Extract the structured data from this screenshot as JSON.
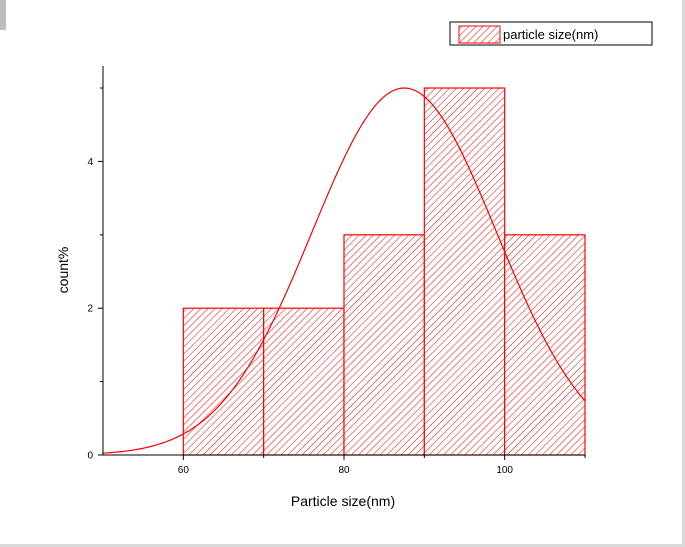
{
  "chart_data": {
    "type": "bar",
    "subtype": "histogram",
    "title": "",
    "xlabel": "Particle size(nm)",
    "ylabel": "count%",
    "xlim": [
      50,
      110
    ],
    "ylim": [
      0,
      5.3
    ],
    "x_ticks": [
      60,
      80,
      100
    ],
    "y_ticks": [
      0,
      2,
      4
    ],
    "grid": false,
    "legend_position": "top-right",
    "bins": [
      {
        "start": 60,
        "end": 70,
        "value": 2
      },
      {
        "start": 70,
        "end": 80,
        "value": 2
      },
      {
        "start": 80,
        "end": 90,
        "value": 3
      },
      {
        "start": 90,
        "end": 100,
        "value": 5
      },
      {
        "start": 100,
        "end": 110,
        "value": 3
      }
    ],
    "series": [
      {
        "name": "particle size(nm)",
        "kind": "histogram",
        "color": "#ff0000",
        "fill": "diagonal-hatch"
      },
      {
        "kind": "normal-fit-curve",
        "color": "#ff0000",
        "mean": 87.5,
        "sd": 11.5,
        "peak": 5
      }
    ]
  },
  "colors": {
    "bar_stroke": "#ff0000",
    "hatch": "#ff0000",
    "curve": "#ff0000",
    "axis": "#000000",
    "frame_border": "#d9d9d9"
  }
}
